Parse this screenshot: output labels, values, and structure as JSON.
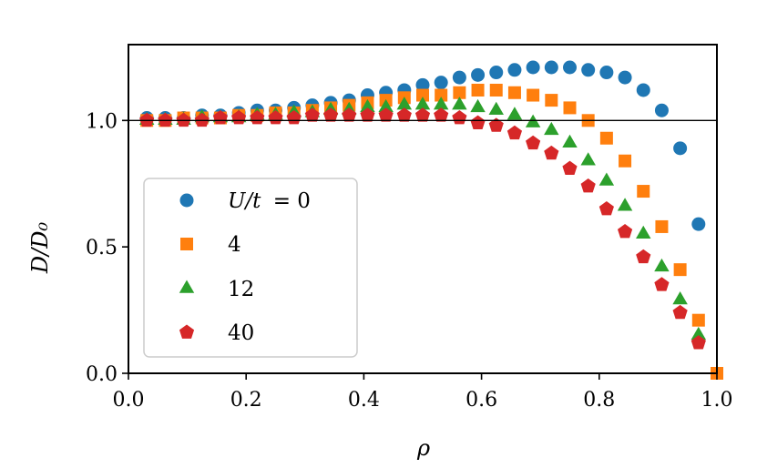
{
  "chart_data": {
    "type": "scatter",
    "xlabel": "ρ",
    "ylabel": "D/D₀",
    "xlim": [
      0.0,
      1.0
    ],
    "ylim": [
      0.0,
      1.3
    ],
    "xticks": [
      "0.0",
      "0.2",
      "0.4",
      "0.6",
      "0.8",
      "1.0"
    ],
    "yticks": [
      "0.0",
      "0.5",
      "1.0"
    ],
    "reference_line_y": 1.0,
    "legend_placement": "center-left",
    "series": [
      {
        "name": "U/t = 0",
        "label_prefix": "U/t",
        "label_value": "= 0",
        "color": "#1f77b4",
        "marker": "circle",
        "x": [
          0.03125,
          0.0625,
          0.09375,
          0.125,
          0.15625,
          0.1875,
          0.21875,
          0.25,
          0.28125,
          0.3125,
          0.34375,
          0.375,
          0.40625,
          0.4375,
          0.46875,
          0.5,
          0.53125,
          0.5625,
          0.59375,
          0.625,
          0.65625,
          0.6875,
          0.71875,
          0.75,
          0.78125,
          0.8125,
          0.84375,
          0.875,
          0.90625,
          0.9375,
          0.96875
        ],
        "y": [
          1.01,
          1.01,
          1.01,
          1.02,
          1.02,
          1.03,
          1.04,
          1.04,
          1.05,
          1.06,
          1.07,
          1.08,
          1.1,
          1.11,
          1.12,
          1.14,
          1.15,
          1.17,
          1.18,
          1.19,
          1.2,
          1.21,
          1.21,
          1.21,
          1.2,
          1.19,
          1.17,
          1.12,
          1.04,
          0.89,
          0.59
        ]
      },
      {
        "name": "4",
        "color": "#ff7f0e",
        "marker": "square",
        "x": [
          0.03125,
          0.0625,
          0.09375,
          0.125,
          0.15625,
          0.1875,
          0.21875,
          0.25,
          0.28125,
          0.3125,
          0.34375,
          0.375,
          0.40625,
          0.4375,
          0.46875,
          0.5,
          0.53125,
          0.5625,
          0.59375,
          0.625,
          0.65625,
          0.6875,
          0.71875,
          0.75,
          0.78125,
          0.8125,
          0.84375,
          0.875,
          0.90625,
          0.9375,
          0.96875,
          1.0
        ],
        "y": [
          1.0,
          1.0,
          1.01,
          1.01,
          1.01,
          1.02,
          1.02,
          1.03,
          1.03,
          1.04,
          1.05,
          1.06,
          1.07,
          1.08,
          1.09,
          1.1,
          1.1,
          1.11,
          1.12,
          1.12,
          1.11,
          1.1,
          1.08,
          1.05,
          1.0,
          0.93,
          0.84,
          0.72,
          0.58,
          0.41,
          0.21,
          0.0
        ]
      },
      {
        "name": "12",
        "color": "#2ca02c",
        "marker": "triangle",
        "x": [
          0.03125,
          0.0625,
          0.09375,
          0.125,
          0.15625,
          0.1875,
          0.21875,
          0.25,
          0.28125,
          0.3125,
          0.34375,
          0.375,
          0.40625,
          0.4375,
          0.46875,
          0.5,
          0.53125,
          0.5625,
          0.59375,
          0.625,
          0.65625,
          0.6875,
          0.71875,
          0.75,
          0.78125,
          0.8125,
          0.84375,
          0.875,
          0.90625,
          0.9375,
          0.96875
        ],
        "y": [
          1.0,
          1.0,
          1.0,
          1.01,
          1.01,
          1.01,
          1.02,
          1.02,
          1.03,
          1.03,
          1.04,
          1.04,
          1.05,
          1.05,
          1.06,
          1.06,
          1.06,
          1.06,
          1.05,
          1.04,
          1.02,
          0.99,
          0.96,
          0.91,
          0.84,
          0.76,
          0.66,
          0.55,
          0.42,
          0.29,
          0.15
        ]
      },
      {
        "name": "40",
        "color": "#d62728",
        "marker": "pentagon",
        "x": [
          0.03125,
          0.0625,
          0.09375,
          0.125,
          0.15625,
          0.1875,
          0.21875,
          0.25,
          0.28125,
          0.3125,
          0.34375,
          0.375,
          0.40625,
          0.4375,
          0.46875,
          0.5,
          0.53125,
          0.5625,
          0.59375,
          0.625,
          0.65625,
          0.6875,
          0.71875,
          0.75,
          0.78125,
          0.8125,
          0.84375,
          0.875,
          0.90625,
          0.9375,
          0.96875
        ],
        "y": [
          1.0,
          1.0,
          1.0,
          1.0,
          1.01,
          1.01,
          1.01,
          1.01,
          1.01,
          1.02,
          1.02,
          1.02,
          1.02,
          1.02,
          1.02,
          1.02,
          1.02,
          1.01,
          0.99,
          0.98,
          0.95,
          0.91,
          0.87,
          0.81,
          0.74,
          0.65,
          0.56,
          0.46,
          0.35,
          0.24,
          0.12
        ]
      }
    ]
  }
}
